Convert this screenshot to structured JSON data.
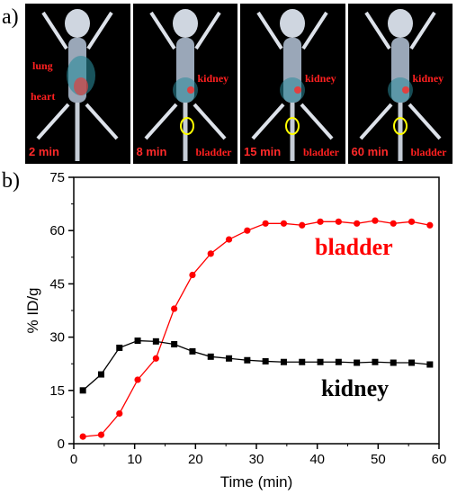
{
  "panel_a_label": "a)",
  "panel_b_label": "b)",
  "scans": [
    {
      "time": "2 min",
      "labels": [
        "lung",
        "heart"
      ]
    },
    {
      "time": "8 min",
      "labels": [
        "kidney",
        "bladder"
      ]
    },
    {
      "time": "15 min",
      "labels": [
        "kidney",
        "bladder"
      ]
    },
    {
      "time": "60 min",
      "labels": [
        "kidney",
        "bladder"
      ]
    }
  ],
  "colors": {
    "bladder": "#ff0000",
    "kidney": "#000000",
    "label_red": "#ff2020"
  },
  "chart_data": {
    "type": "line",
    "title": "",
    "xlabel": "Time (min)",
    "ylabel": "% ID/g",
    "xlim": [
      0,
      60
    ],
    "ylim": [
      0,
      75
    ],
    "xticks": [
      0,
      10,
      20,
      30,
      40,
      50,
      60
    ],
    "yticks": [
      0,
      15,
      30,
      45,
      60,
      75
    ],
    "grid": false,
    "series": [
      {
        "name": "bladder",
        "marker": "circle",
        "color": "#ff0000",
        "x": [
          1.5,
          4.5,
          7.5,
          10.5,
          13.5,
          16.5,
          19.5,
          22.5,
          25.5,
          28.5,
          31.5,
          34.5,
          37.5,
          40.5,
          43.5,
          46.5,
          49.5,
          52.5,
          55.5,
          58.5
        ],
        "y": [
          2,
          2.5,
          8.5,
          18,
          24,
          38,
          47.5,
          53.5,
          57.5,
          60,
          62,
          62,
          61.5,
          62.5,
          62.5,
          62,
          62.8,
          62,
          62.5,
          61.5
        ]
      },
      {
        "name": "kidney",
        "marker": "square",
        "color": "#000000",
        "x": [
          1.5,
          4.5,
          7.5,
          10.5,
          13.5,
          16.5,
          19.5,
          22.5,
          25.5,
          28.5,
          31.5,
          34.5,
          37.5,
          40.5,
          43.5,
          46.5,
          49.5,
          52.5,
          55.5,
          58.5
        ],
        "y": [
          15,
          19.5,
          27,
          29,
          28.8,
          28,
          26,
          24.5,
          24,
          23.5,
          23.2,
          23,
          23,
          23,
          23,
          22.8,
          23,
          22.8,
          22.8,
          22.3
        ]
      }
    ],
    "annotations": [
      "bladder",
      "kidney"
    ]
  }
}
